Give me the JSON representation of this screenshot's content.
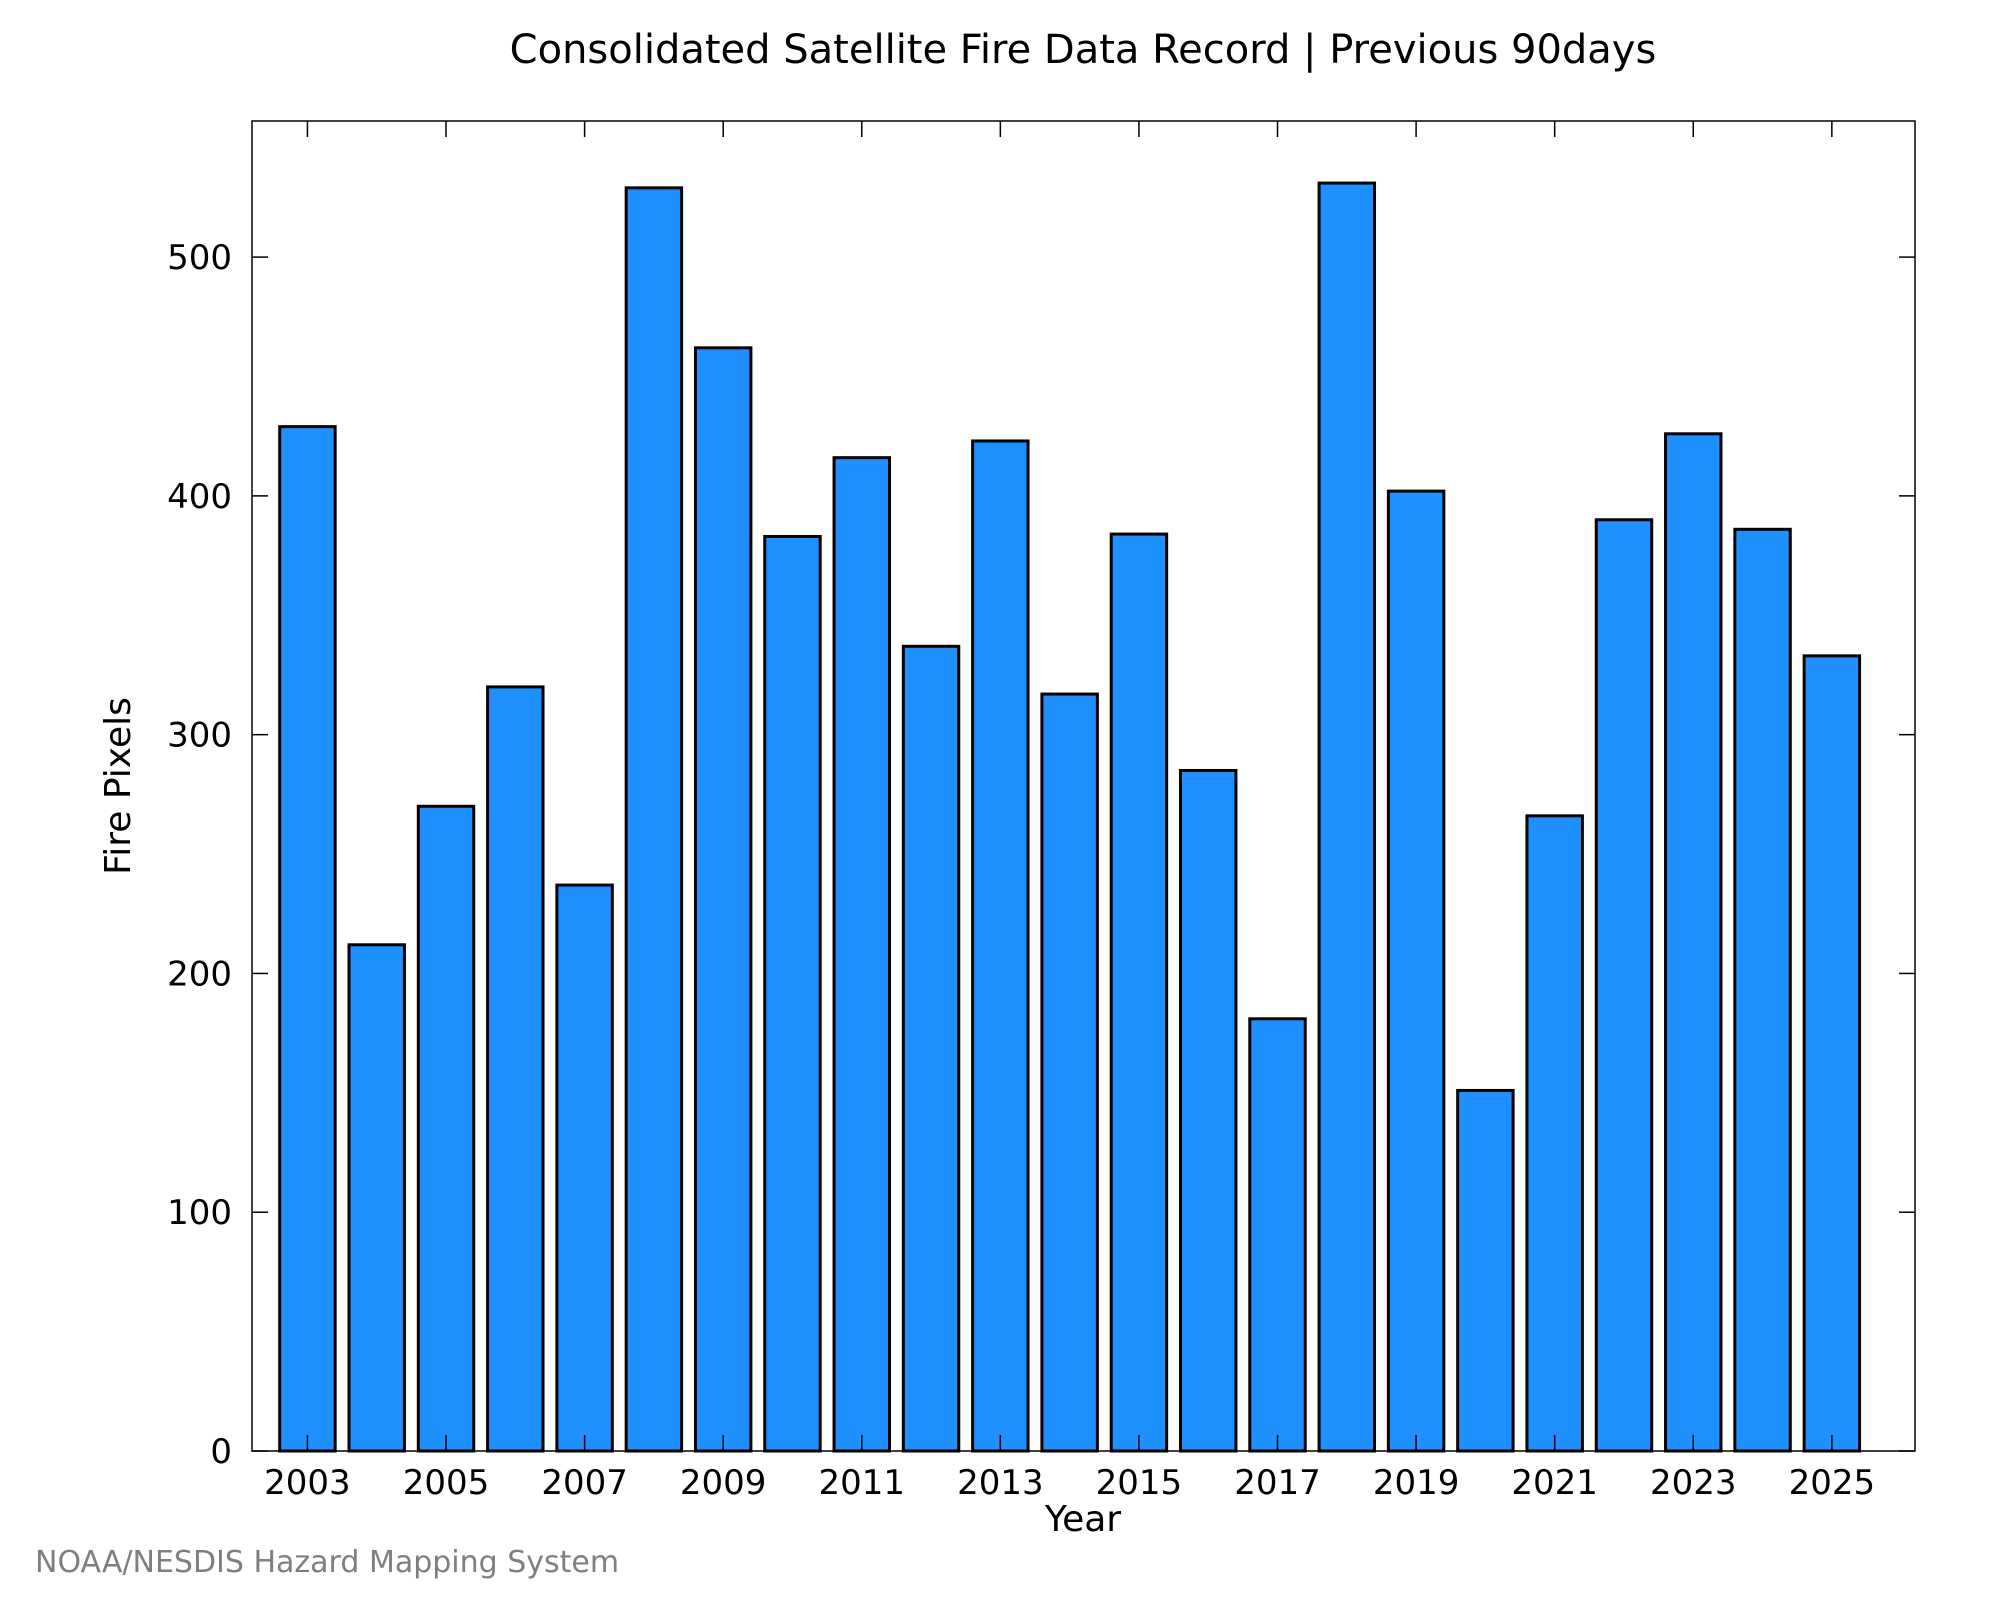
{
  "chart_data": {
    "type": "bar",
    "title": "Consolidated Satellite Fire Data Record | Previous 90days",
    "xlabel": "Year",
    "ylabel": "Fire Pixels",
    "credit": "NOAA/NESDIS Hazard Mapping System",
    "categories": [
      2003,
      2004,
      2005,
      2006,
      2007,
      2008,
      2009,
      2010,
      2011,
      2012,
      2013,
      2014,
      2015,
      2016,
      2017,
      2018,
      2019,
      2020,
      2021,
      2022,
      2023,
      2024,
      2025
    ],
    "values": [
      429,
      212,
      270,
      320,
      237,
      529,
      462,
      383,
      416,
      337,
      423,
      317,
      384,
      285,
      181,
      531,
      402,
      151,
      266,
      390,
      426,
      386,
      333
    ],
    "xlim": [
      2002.2,
      2026.2
    ],
    "ylim": [
      0,
      557
    ],
    "xticks": [
      2003,
      2005,
      2007,
      2009,
      2011,
      2013,
      2015,
      2017,
      2019,
      2021,
      2023,
      2025
    ],
    "yticks": [
      0,
      100,
      200,
      300,
      400,
      500
    ],
    "bar_color": "#1E90FF",
    "edge_color": "#000000",
    "credit_color": "#7F7F7F",
    "grid": false,
    "legend": "none"
  }
}
